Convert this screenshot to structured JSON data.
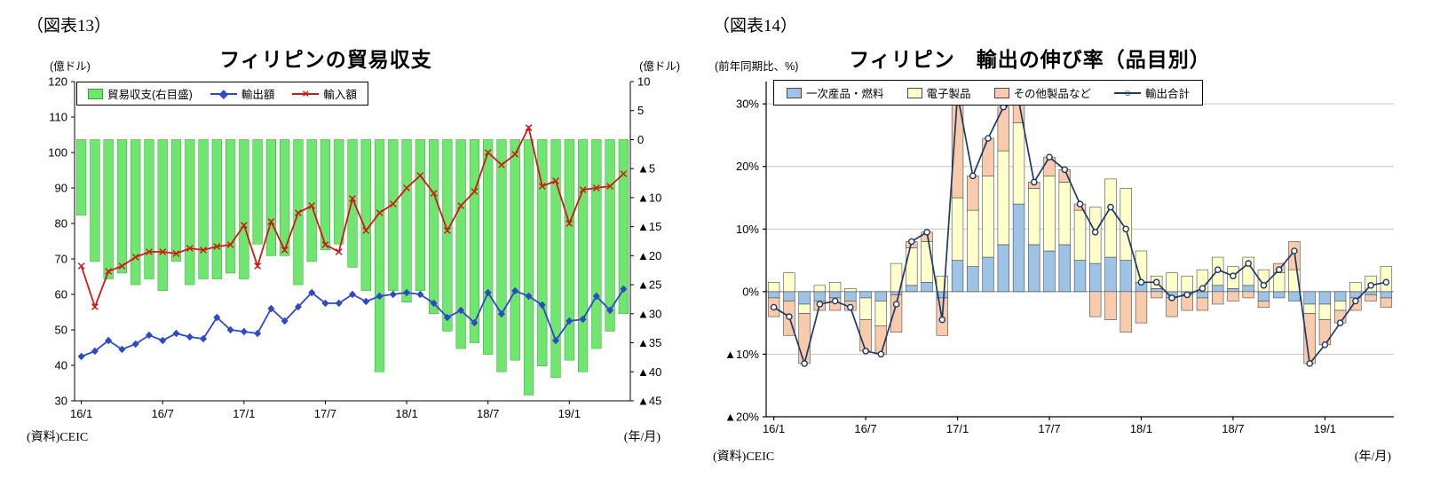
{
  "figure13": {
    "figure_label": "（図表13）",
    "title": "フィリピンの貿易収支",
    "unit_left": "(億ドル)",
    "unit_right": "(億ドル)",
    "source": "(資料)CEIC",
    "x_unit": "(年/月)"
  },
  "figure14": {
    "figure_label": "（図表14）",
    "title": "フィリピン　輸出の伸び率（品目別）",
    "y_unit": "(前年同期比、%)",
    "source": "(資料)CEIC",
    "x_unit": "(年/月)"
  },
  "chart_data": [
    {
      "id": "fig13",
      "type": "bar",
      "title": "フィリピンの貿易収支",
      "months": [
        "16/1",
        "16/2",
        "16/3",
        "16/4",
        "16/5",
        "16/6",
        "16/7",
        "16/8",
        "16/9",
        "16/10",
        "16/11",
        "16/12",
        "17/1",
        "17/2",
        "17/3",
        "17/4",
        "17/5",
        "17/6",
        "17/7",
        "17/8",
        "17/9",
        "17/10",
        "17/11",
        "17/12",
        "18/1",
        "18/2",
        "18/3",
        "18/4",
        "18/5",
        "18/6",
        "18/7",
        "18/8",
        "18/9",
        "18/10",
        "18/11",
        "18/12",
        "19/1",
        "19/2",
        "19/3",
        "19/4",
        "19/5"
      ],
      "x_ticks": {
        "indices": [
          0,
          6,
          12,
          18,
          24,
          30,
          36
        ],
        "labels": [
          "16/1",
          "16/7",
          "17/1",
          "17/7",
          "18/1",
          "18/7",
          "19/1"
        ]
      },
      "left_axis": {
        "min": 30,
        "max": 120,
        "ticks": [
          120,
          110,
          100,
          90,
          80,
          70,
          60,
          50,
          40,
          30
        ],
        "labels": [
          "120",
          "110",
          "100",
          "90",
          "80",
          "70",
          "60",
          "50",
          "40",
          "30"
        ]
      },
      "right_axis": {
        "min": -45,
        "max": 10,
        "ticks": [
          10,
          5,
          0,
          -5,
          -10,
          -15,
          -20,
          -25,
          -30,
          -35,
          -40,
          -45
        ],
        "labels": [
          "10",
          "5",
          "0",
          "▲5",
          "▲10",
          "▲15",
          "▲20",
          "▲25",
          "▲30",
          "▲35",
          "▲40",
          "▲45"
        ]
      },
      "series": [
        {
          "name": "貿易収支(右目盛)",
          "type": "bar",
          "axis": "right",
          "color": "#70E670",
          "border": "#2FA72F",
          "values": [
            -13,
            -21,
            -24,
            -23,
            -25,
            -24,
            -26,
            -21,
            -25,
            -24,
            -24,
            -23,
            -24,
            -18,
            -20,
            -20,
            -25,
            -21,
            -19,
            -18,
            -22,
            -26,
            -40,
            -26,
            -28,
            -26,
            -30,
            -33,
            -36,
            -35,
            -37,
            -40,
            -38,
            -44,
            -39,
            -41,
            -38,
            -40,
            -36,
            -33,
            -30
          ]
        },
        {
          "name": "輸出額",
          "type": "line",
          "marker": "diamond",
          "glyph": "◆",
          "axis": "left",
          "color": "#2F49C4",
          "values": [
            42.5,
            44,
            47,
            44.5,
            46,
            48.5,
            47,
            49,
            48,
            47.5,
            53.5,
            50,
            49.5,
            49,
            56,
            52.5,
            56.5,
            60.5,
            57.5,
            57.5,
            60,
            58,
            59.5,
            60,
            60.5,
            60,
            57.5,
            53.5,
            55.5,
            52,
            60.5,
            54.5,
            61,
            59.5,
            57,
            47,
            52.5,
            53,
            59.5,
            55.5,
            61.5
          ]
        },
        {
          "name": "輸入額",
          "type": "line",
          "marker": "x",
          "glyph": "×",
          "axis": "left",
          "color": "#D01818",
          "values": [
            68,
            56.5,
            66.5,
            68,
            70.5,
            72,
            72,
            71.5,
            73,
            72.5,
            73.5,
            74,
            79.5,
            68,
            80.5,
            72.5,
            83,
            85,
            74,
            72,
            87,
            78,
            83,
            85.5,
            90,
            93.5,
            88.5,
            78,
            85,
            89,
            100,
            96.5,
            99.5,
            107,
            90.5,
            92,
            80,
            89.5,
            90,
            90.5,
            94
          ]
        }
      ]
    },
    {
      "id": "fig14",
      "type": "bar",
      "subtype": "stacked-bar-with-line",
      "title": "フィリピン　輸出の伸び率（品目別）",
      "ylabel": "(前年同期比、%)",
      "months": [
        "16/1",
        "16/2",
        "16/3",
        "16/4",
        "16/5",
        "16/6",
        "16/7",
        "16/8",
        "16/9",
        "16/10",
        "16/11",
        "16/12",
        "17/1",
        "17/2",
        "17/3",
        "17/4",
        "17/5",
        "17/6",
        "17/7",
        "17/8",
        "17/9",
        "17/10",
        "17/11",
        "17/12",
        "18/1",
        "18/2",
        "18/3",
        "18/4",
        "18/5",
        "18/6",
        "18/7",
        "18/8",
        "18/9",
        "18/10",
        "18/11",
        "18/12",
        "19/1",
        "19/2",
        "19/3",
        "19/4",
        "19/5"
      ],
      "x_ticks": {
        "indices": [
          0,
          6,
          12,
          18,
          24,
          30,
          36
        ],
        "labels": [
          "16/1",
          "16/7",
          "17/1",
          "17/7",
          "18/1",
          "18/7",
          "19/1"
        ]
      },
      "y_axis": {
        "min": -20,
        "max": 33,
        "ticks": [
          30,
          20,
          10,
          0,
          -10,
          -20
        ],
        "labels": [
          "30%",
          "20%",
          "10%",
          "0%",
          "▲10%",
          "▲20%"
        ]
      },
      "bar_border": "#4A4A4A",
      "series": [
        {
          "name": "一次産品・燃料",
          "type": "bar",
          "color": "#9DC3E6",
          "values": [
            -1,
            -1.5,
            -2,
            -1.5,
            -1,
            -1.5,
            -1,
            -1.5,
            -0.5,
            1,
            1.5,
            -1,
            5,
            4,
            5.5,
            7.5,
            14,
            7.5,
            6.5,
            7.5,
            5,
            4.5,
            5.5,
            5,
            1.5,
            0.5,
            -1,
            -0.5,
            -1,
            1,
            0.5,
            1,
            -1.5,
            -1,
            -1.5,
            -2,
            -2,
            -1.5,
            -1,
            -0.5,
            -1
          ]
        },
        {
          "name": "電子製品",
          "type": "bar",
          "color": "#FFFFCC",
          "values": [
            1.5,
            3,
            -1.5,
            1,
            1.5,
            0.5,
            -3.5,
            -4,
            4.5,
            6,
            6.5,
            2.5,
            10,
            9,
            13,
            15,
            13,
            9,
            12,
            10,
            8,
            9,
            12.5,
            11.5,
            5,
            2,
            3,
            2.5,
            3.5,
            4.5,
            3.5,
            4.5,
            3.5,
            3,
            3.5,
            -1.5,
            -2.5,
            -1.5,
            1.5,
            2.5,
            4
          ]
        },
        {
          "name": "その他製品など",
          "type": "bar",
          "color": "#F8CBAD",
          "values": [
            -3,
            -5.5,
            -8,
            -1.5,
            -2,
            -1.5,
            -5,
            -4.5,
            -6,
            1,
            1.5,
            -6,
            16.5,
            5.5,
            6,
            7,
            3.5,
            1,
            3,
            2,
            1,
            -4,
            -4.5,
            -6.5,
            -5,
            -1,
            -3,
            -2.5,
            -2,
            -2,
            -1.5,
            -1,
            -1,
            1.5,
            4.5,
            -8,
            -4,
            -2,
            -2,
            -1,
            -1.5
          ]
        },
        {
          "name": "輸出合計",
          "type": "line",
          "marker": "circle",
          "glyph": "○",
          "color": "#1F3864",
          "values": [
            -2.5,
            -4,
            -11.5,
            -2,
            -1.5,
            -2.5,
            -9.5,
            -10,
            -2,
            8,
            9.5,
            -4.5,
            31.5,
            18.5,
            24.5,
            29.5,
            30.5,
            17.5,
            21.5,
            19.5,
            14,
            9.5,
            13.5,
            10,
            1.5,
            1.5,
            -1,
            -0.5,
            0.5,
            3.5,
            2.5,
            4.5,
            1,
            3.5,
            6.5,
            -11.5,
            -8.5,
            -5,
            -1.5,
            1,
            1.5
          ]
        }
      ]
    }
  ]
}
